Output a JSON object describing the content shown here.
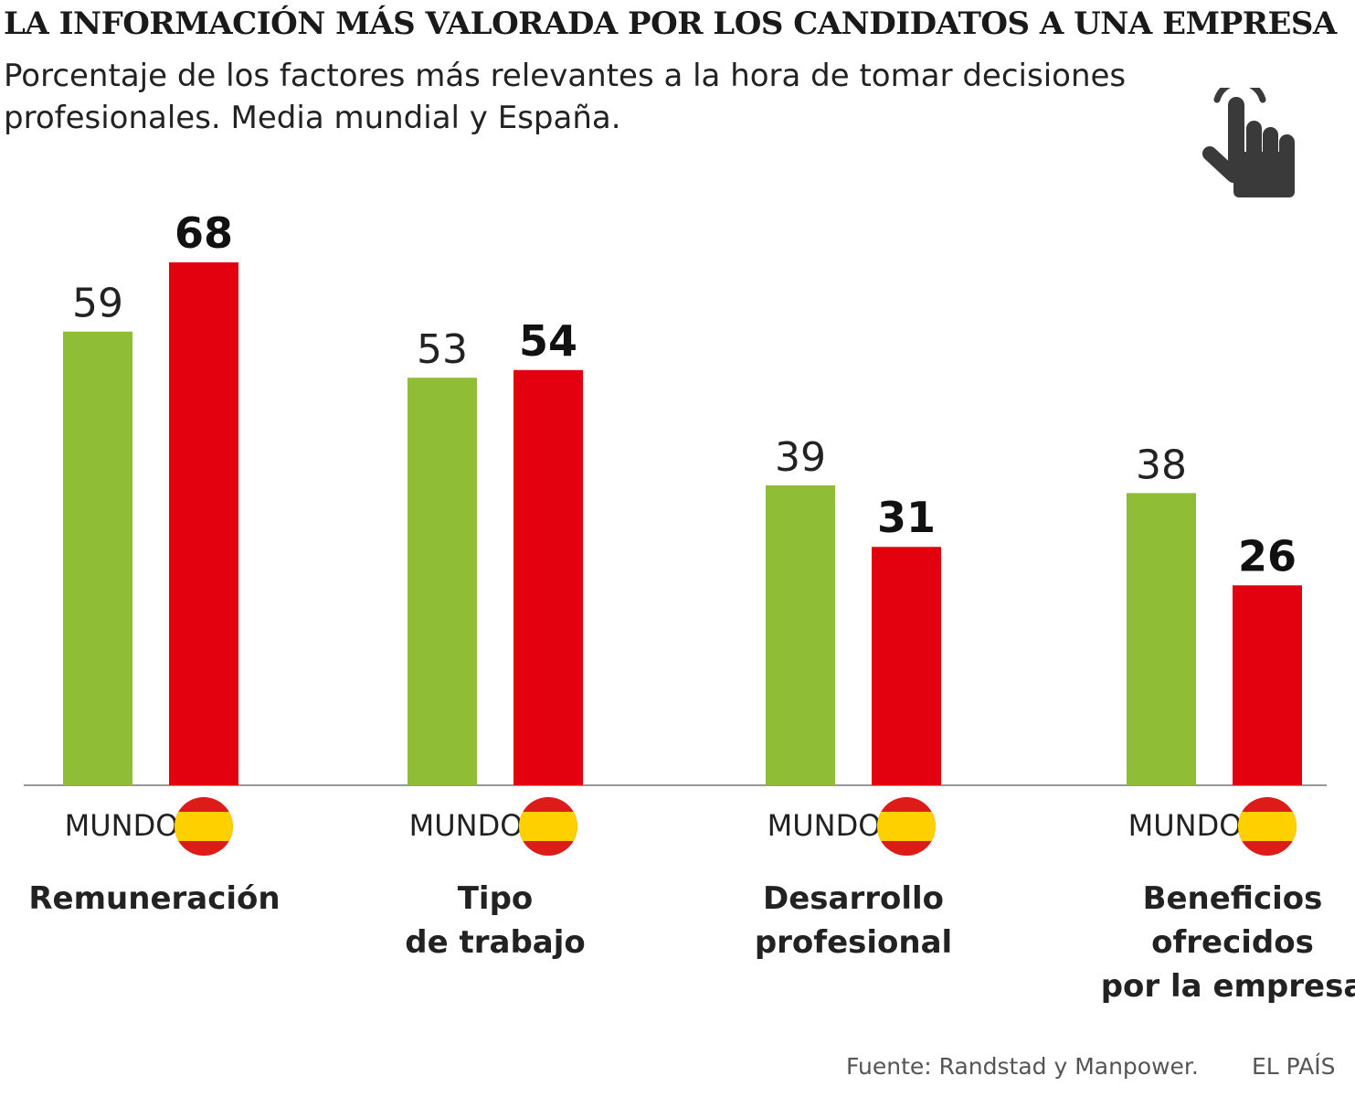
{
  "title": "LA INFORMACIÓN MÁS VALORADA POR LOS CANDIDATOS A UNA EMPRESA",
  "subtitle": "Porcentaje de los factores más relevantes a la hora de tomar decisiones profesionales. Media mundial y España.",
  "icon": "pointing-hand-icon",
  "colors": {
    "world": "#8fbd35",
    "spain": "#e3000f",
    "flag_red": "#dd1c1a",
    "flag_yellow": "#ffd000",
    "axis": "#777777"
  },
  "chart_data": {
    "type": "bar",
    "title": "LA INFORMACIÓN MÁS VALORADA POR LOS CANDIDATOS A UNA EMPRESA",
    "subtitle": "Porcentaje de los factores más relevantes a la hora de tomar decisiones profesionales. Media mundial y España.",
    "categories": [
      [
        "Remuneración"
      ],
      [
        "Tipo",
        "de trabajo"
      ],
      [
        "Desarrollo",
        "profesional"
      ],
      [
        "Beneficios",
        "ofrecidos",
        "por la empresa"
      ]
    ],
    "series": [
      {
        "name": "MUNDO",
        "values": [
          59,
          53,
          39,
          38
        ]
      },
      {
        "name": "España",
        "values": [
          68,
          54,
          31,
          26
        ]
      }
    ],
    "series_labels": [
      "MUNDO",
      ""
    ],
    "ylim": [
      0,
      68
    ],
    "grid": false,
    "xlabel": "",
    "ylabel": ""
  },
  "footer": {
    "source": "Fuente: Randstad y Manpower.",
    "brand": "EL PAÍS"
  }
}
